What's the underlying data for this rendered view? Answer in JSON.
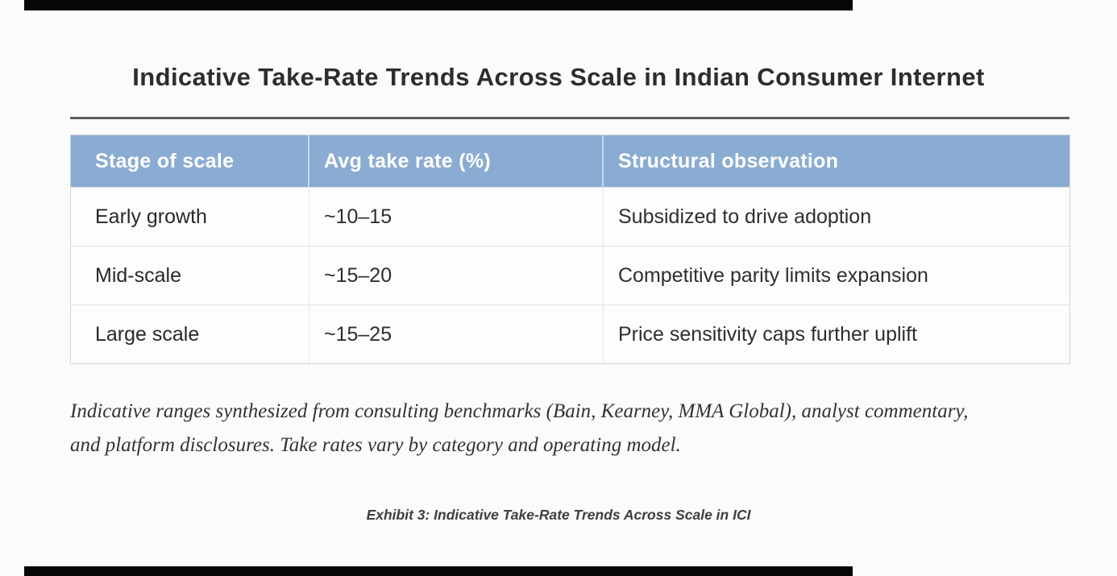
{
  "page": {
    "title": "Indicative Take-Rate Trends Across Scale in Indian Consumer Internet",
    "caption": "Exhibit 3: Indicative Take-Rate Trends Across Scale in ICI"
  },
  "table": {
    "headers": [
      "Stage of scale",
      "Avg take rate (%)",
      "Structural observation"
    ],
    "rows": [
      {
        "stage": "Early growth",
        "take_rate": "~10–15",
        "observation": "Subsidized to drive adoption"
      },
      {
        "stage": "Mid-scale",
        "take_rate": "~15–20",
        "observation": "Competitive parity limits expansion"
      },
      {
        "stage": "Large scale",
        "take_rate": "~15–25",
        "observation": "Price sensitivity caps further uplift"
      }
    ]
  },
  "footnote": {
    "line1": "Indicative ranges synthesized from consulting benchmarks (Bain, Kearney, MMA Global), analyst commentary,",
    "line2": "and platform disclosures. Take rates vary by category and operating model."
  },
  "colors": {
    "header_bg": "#8aacd2",
    "header_text": "#ffffff",
    "title_rule": "#5b5b60",
    "body_text": "#2e2e32",
    "letterbox": "#060606",
    "background": "#fbfbfb"
  }
}
